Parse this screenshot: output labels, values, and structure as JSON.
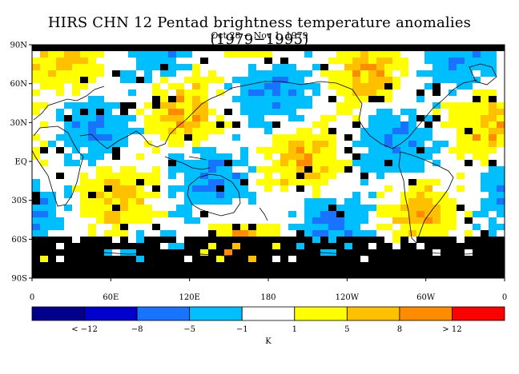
{
  "title": "HIRS CHN 12 Pentad brightness temperature anomalies (1979−1995)",
  "subtitle": "Oct 28 − Nov 1, 1979",
  "lat_labels": [
    "90N",
    "60N",
    "30N",
    "EQ",
    "30S",
    "60S",
    "90S"
  ],
  "lon_labels": [
    "0",
    "60E",
    "120E",
    "180",
    "120W",
    "60W",
    "0"
  ],
  "colorbar": {
    "colors": [
      "#00008b",
      "#0000cd",
      "#1874ff",
      "#00bfff",
      "#ffffff",
      "#ffff00",
      "#ffc000",
      "#ff8c00",
      "#ff0000"
    ],
    "tick_labels": [
      "< −12",
      "−8",
      "−5",
      "−1",
      "1",
      "5",
      "8",
      "> 12"
    ],
    "unit": "K"
  }
}
